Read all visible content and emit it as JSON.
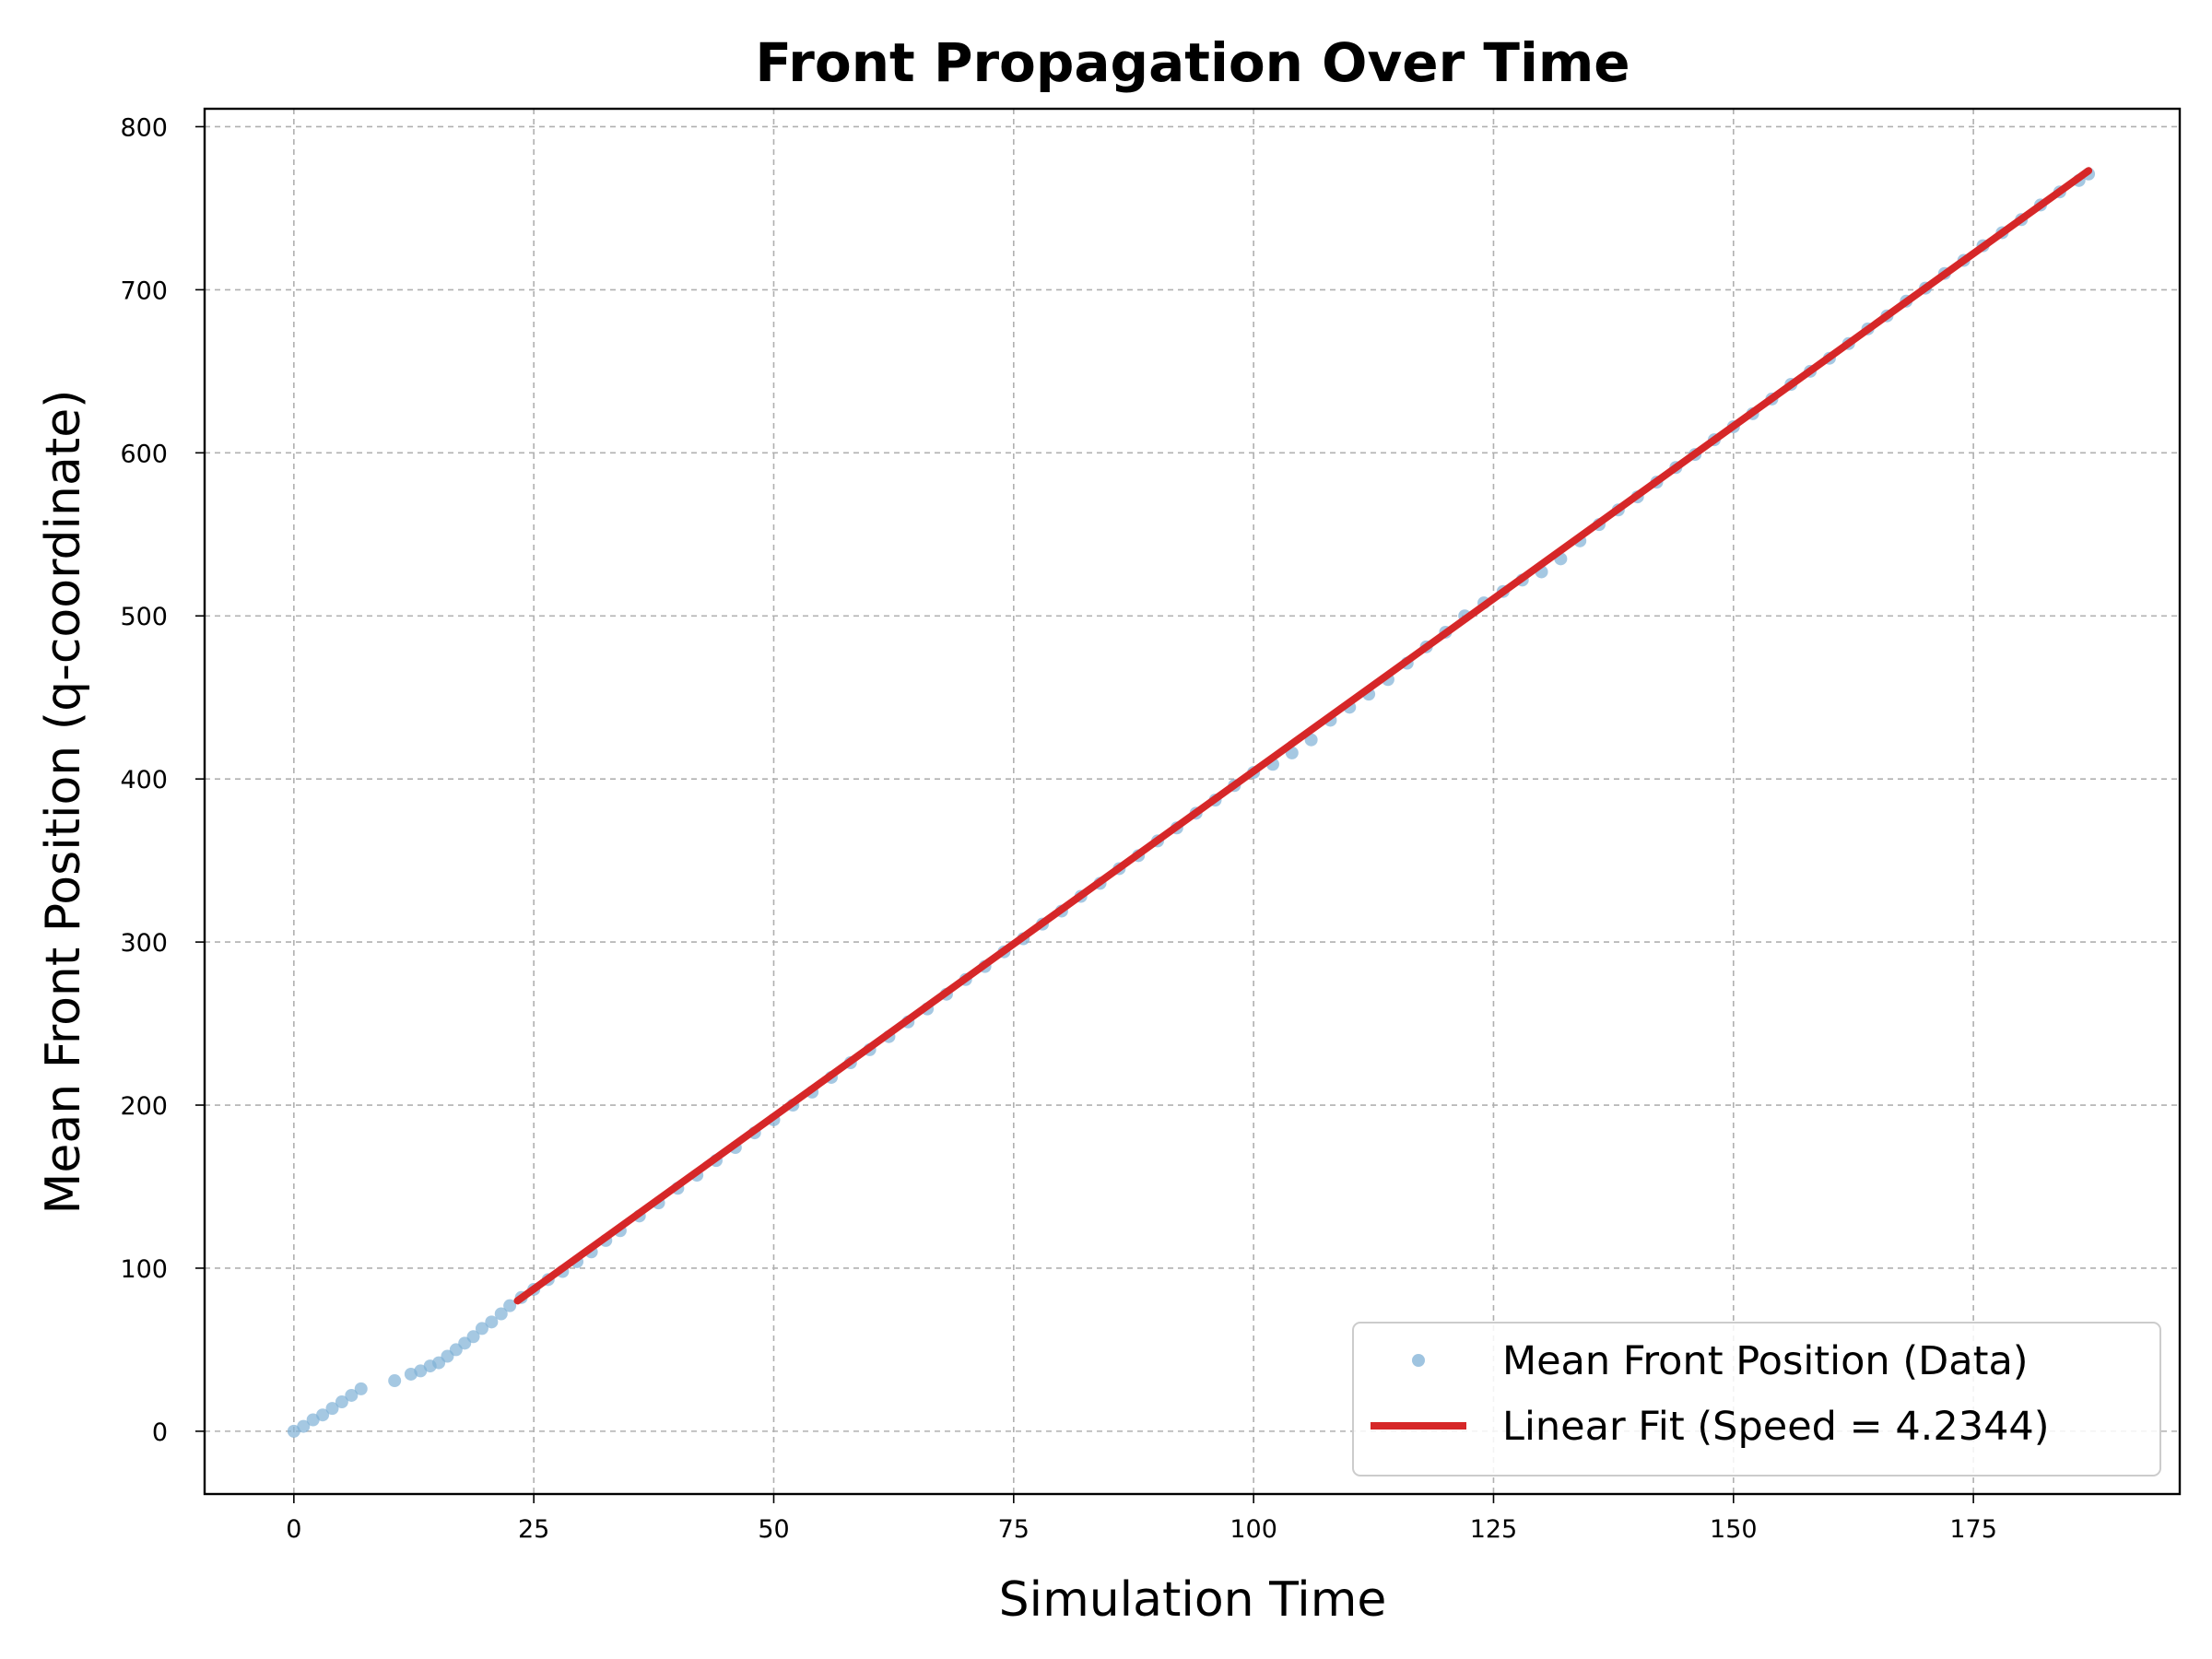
{
  "chart_data": {
    "type": "scatter",
    "title": "Front Propagation Over Time",
    "xlabel": "Simulation Time",
    "ylabel": "Mean Front Position (q-coordinate)",
    "xlim": [
      -9.3,
      196.5
    ],
    "ylim": [
      -38.5,
      811
    ],
    "xticks": [
      0,
      25,
      50,
      75,
      100,
      125,
      150,
      175
    ],
    "yticks": [
      0,
      100,
      200,
      300,
      400,
      500,
      600,
      700,
      800
    ],
    "grid": true,
    "legend_position": "bottom-right",
    "colors": {
      "data": "#7fb0d6",
      "fit": "#d62728"
    },
    "series": [
      {
        "name": "Mean Front Position (Data)",
        "kind": "scatter",
        "points": [
          [
            0,
            0
          ],
          [
            1,
            3
          ],
          [
            2,
            7
          ],
          [
            3,
            10
          ],
          [
            4,
            14
          ],
          [
            5,
            18
          ],
          [
            6,
            22
          ],
          [
            7,
            26
          ],
          [
            10.5,
            31
          ],
          [
            12.2,
            35
          ],
          [
            13.2,
            37
          ],
          [
            14.2,
            40
          ],
          [
            15.1,
            42
          ],
          [
            16,
            46
          ],
          [
            16.9,
            50
          ],
          [
            17.8,
            54
          ],
          [
            18.7,
            58
          ],
          [
            19.6,
            63
          ],
          [
            20.6,
            67
          ],
          [
            21.6,
            72
          ],
          [
            22.5,
            77
          ],
          [
            23.7,
            82
          ],
          [
            25,
            87
          ],
          [
            26.5,
            93
          ],
          [
            28,
            98
          ],
          [
            29.5,
            104
          ],
          [
            31,
            110
          ],
          [
            32.5,
            117
          ],
          [
            34,
            123
          ],
          [
            36,
            132
          ],
          [
            38,
            140
          ],
          [
            40,
            149
          ],
          [
            42,
            157
          ],
          [
            44,
            166
          ],
          [
            46,
            174
          ],
          [
            48,
            183
          ],
          [
            50,
            191
          ],
          [
            52,
            200
          ],
          [
            54,
            208
          ],
          [
            56,
            217
          ],
          [
            58,
            226
          ],
          [
            60,
            234
          ],
          [
            62,
            242
          ],
          [
            64,
            251
          ],
          [
            66,
            259
          ],
          [
            68,
            268
          ],
          [
            70,
            277
          ],
          [
            72,
            285
          ],
          [
            74,
            294
          ],
          [
            76,
            302
          ],
          [
            78,
            311
          ],
          [
            80,
            319
          ],
          [
            82,
            328
          ],
          [
            84,
            336
          ],
          [
            86,
            345
          ],
          [
            88,
            353
          ],
          [
            90,
            362
          ],
          [
            92,
            370
          ],
          [
            94,
            379
          ],
          [
            96,
            387
          ],
          [
            98,
            396
          ],
          [
            100,
            404
          ],
          [
            102,
            409
          ],
          [
            104,
            416
          ],
          [
            106,
            424
          ],
          [
            108,
            436
          ],
          [
            110,
            444
          ],
          [
            112,
            452
          ],
          [
            114,
            461
          ],
          [
            116,
            471
          ],
          [
            118,
            481
          ],
          [
            120,
            490
          ],
          [
            122,
            500
          ],
          [
            124,
            508
          ],
          [
            126,
            515
          ],
          [
            128,
            522
          ],
          [
            130,
            527
          ],
          [
            132,
            535
          ],
          [
            134,
            546
          ],
          [
            136,
            556
          ],
          [
            138,
            565
          ],
          [
            140,
            573
          ],
          [
            142,
            582
          ],
          [
            144,
            591
          ],
          [
            146,
            599
          ],
          [
            148,
            608
          ],
          [
            150,
            616
          ],
          [
            152,
            624
          ],
          [
            154,
            633
          ],
          [
            156,
            642
          ],
          [
            158,
            650
          ],
          [
            160,
            658
          ],
          [
            162,
            667
          ],
          [
            164,
            676
          ],
          [
            166,
            684
          ],
          [
            168,
            693
          ],
          [
            170,
            701
          ],
          [
            172,
            710
          ],
          [
            174,
            718
          ],
          [
            176,
            727
          ],
          [
            178,
            735
          ],
          [
            180,
            743
          ],
          [
            182,
            752
          ],
          [
            184,
            760
          ],
          [
            186,
            767
          ],
          [
            187,
            771
          ]
        ]
      },
      {
        "name": "Linear Fit (Speed = 4.2344)",
        "kind": "line",
        "points": [
          [
            23.3,
            80
          ],
          [
            187,
            773
          ]
        ]
      }
    ]
  }
}
